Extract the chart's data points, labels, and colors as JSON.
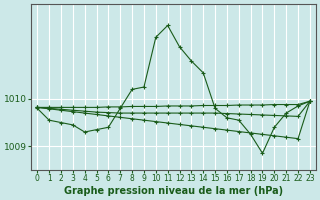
{
  "title": "Graphe pression niveau de la mer (hPa)",
  "bg_color": "#cce8e8",
  "grid_color": "#ffffff",
  "line_color": "#1a5c1a",
  "x_labels": [
    "0",
    "1",
    "2",
    "3",
    "4",
    "5",
    "6",
    "7",
    "8",
    "9",
    "10",
    "11",
    "12",
    "13",
    "14",
    "15",
    "16",
    "17",
    "18",
    "19",
    "20",
    "21",
    "22",
    "23"
  ],
  "ylim": [
    1008.5,
    1012.0
  ],
  "yticks": [
    1009,
    1010
  ],
  "s1": [
    1009.8,
    1009.55,
    1009.5,
    1009.45,
    1009.3,
    1009.35,
    1009.4,
    1009.8,
    1010.2,
    1010.25,
    1011.3,
    1011.55,
    1011.1,
    1010.8,
    1010.55,
    1009.8,
    1009.6,
    1009.55,
    1009.25,
    1008.85,
    1009.4,
    1009.7,
    1009.85,
    1009.95
  ],
  "s2": [
    1009.82,
    1009.82,
    1009.82,
    1009.82,
    1009.82,
    1009.82,
    1009.83,
    1009.83,
    1009.84,
    1009.84,
    1009.84,
    1009.85,
    1009.85,
    1009.85,
    1009.86,
    1009.86,
    1009.86,
    1009.87,
    1009.87,
    1009.87,
    1009.88,
    1009.88,
    1009.88,
    1009.95
  ],
  "s3": [
    1009.82,
    1009.79,
    1009.76,
    1009.73,
    1009.7,
    1009.67,
    1009.64,
    1009.61,
    1009.58,
    1009.55,
    1009.52,
    1009.49,
    1009.46,
    1009.43,
    1009.4,
    1009.37,
    1009.34,
    1009.31,
    1009.28,
    1009.25,
    1009.22,
    1009.19,
    1009.16,
    1009.95
  ],
  "s4": [
    1009.82,
    1009.8,
    1009.78,
    1009.76,
    1009.74,
    1009.72,
    1009.71,
    1009.7,
    1009.7,
    1009.7,
    1009.7,
    1009.7,
    1009.7,
    1009.7,
    1009.7,
    1009.7,
    1009.69,
    1009.68,
    1009.67,
    1009.66,
    1009.65,
    1009.64,
    1009.63,
    1009.95
  ],
  "marker_size": 3.0,
  "line_width": 0.8,
  "xlabel_fontsize": 5.5,
  "ylabel_fontsize": 6.5,
  "title_fontsize": 7.0
}
